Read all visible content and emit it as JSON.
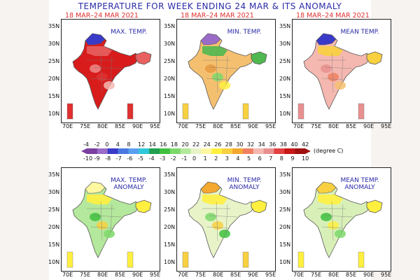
{
  "title": "TEMPERATURE FOR WEEK ENDING 24 MAR & ITS ANOMALY",
  "date_range": "18 MAR–24 MAR 2021",
  "panels": [
    {
      "label_lines": [
        "MAX. TEMP."
      ]
    },
    {
      "label_lines": [
        "MIN. TEMP."
      ]
    },
    {
      "label_lines": [
        "MEAN TEMP."
      ]
    },
    {
      "label_lines": [
        "MAX. TEMP.",
        "ANOMALY"
      ]
    },
    {
      "label_lines": [
        "MIN. TEMP.",
        "ANOMALY"
      ]
    },
    {
      "label_lines": [
        "MEAN TEMP.",
        "ANOMALY"
      ]
    }
  ],
  "lat_ticks": [
    "35N",
    "30N",
    "25N",
    "20N",
    "15N",
    "10N"
  ],
  "lon_ticks": [
    "70E",
    "75E",
    "80E",
    "85E",
    "90E",
    "95E"
  ],
  "colorbar": {
    "temp_ticks": [
      "-4",
      "-2",
      "0",
      "4",
      "8",
      "12",
      "14",
      "16",
      "18",
      "20",
      "22",
      "24",
      "26",
      "28",
      "30",
      "32",
      "34",
      "36",
      "38",
      "40",
      "42"
    ],
    "anomaly_ticks": [
      "-10",
      "-9",
      "-8",
      "-7",
      "-6",
      "-5",
      "-4",
      "-3",
      "-2",
      "-1",
      "0",
      "1",
      "2",
      "3",
      "4",
      "5",
      "6",
      "7",
      "8",
      "9",
      "10"
    ],
    "unit": "(degree C)",
    "colors": [
      "#7a3fa0",
      "#9a6cc8",
      "#3a3ac8",
      "#4a78e0",
      "#5aa0f0",
      "#30c8d8",
      "#20a050",
      "#40c040",
      "#7cd86a",
      "#b4e89c",
      "#e8f4c8",
      "#fff8a0",
      "#fff040",
      "#f8d040",
      "#f4a830",
      "#f08060",
      "#f4b8b0",
      "#e89090",
      "#e04040",
      "#c81818",
      "#a01010"
    ]
  },
  "colors": {
    "title": "#2a2aa8",
    "date": "#e03030",
    "sidebar": "#f7f3f0"
  }
}
